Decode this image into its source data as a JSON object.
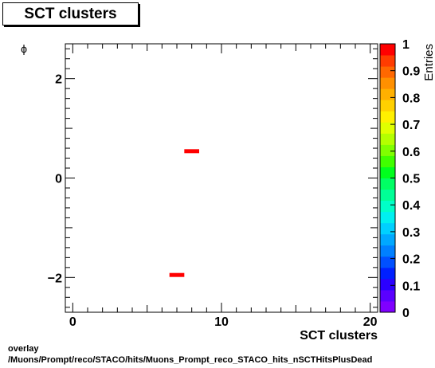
{
  "chart_data": {
    "type": "heatmap",
    "title": "SCT clusters",
    "xlabel": "SCT clusters",
    "ylabel": "ϕ",
    "zlabel": "Entries",
    "xlim": [
      -0.5,
      20.5
    ],
    "ylim": [
      -2.7,
      2.7
    ],
    "zlim": [
      0,
      1
    ],
    "x_ticks": [
      0,
      10,
      20
    ],
    "y_ticks": [
      -2,
      0,
      2
    ],
    "z_ticks": [
      "0",
      "0.1",
      "0.2",
      "0.3",
      "0.4",
      "0.5",
      "0.6",
      "0.7",
      "0.8",
      "0.9",
      "1"
    ],
    "cells": [
      {
        "x": [
          7.5,
          8.5
        ],
        "y": [
          0.53,
          0.58
        ],
        "value": 1
      },
      {
        "x": [
          6.5,
          7.5
        ],
        "y": [
          -1.96,
          -1.91
        ],
        "value": 1
      }
    ],
    "palette": [
      "#7f00ff",
      "#5a00ff",
      "#2b00ff",
      "#0020ff",
      "#0050ff",
      "#0080ff",
      "#00a8ff",
      "#00d0ff",
      "#00f0f0",
      "#00ffc8",
      "#00ff96",
      "#00ff64",
      "#00ff1e",
      "#40ff00",
      "#80ff00",
      "#b4ff00",
      "#e0ff00",
      "#fff000",
      "#ffd000",
      "#ffb000",
      "#ff9000",
      "#ff6800",
      "#ff3c00",
      "#ff0000"
    ],
    "grid": false
  },
  "footer": {
    "line1": "overlay",
    "line2": "/Muons/Prompt/reco/STACO/hits/Muons_Prompt_reco_STACO_hits_nSCTHitsPlusDead"
  }
}
